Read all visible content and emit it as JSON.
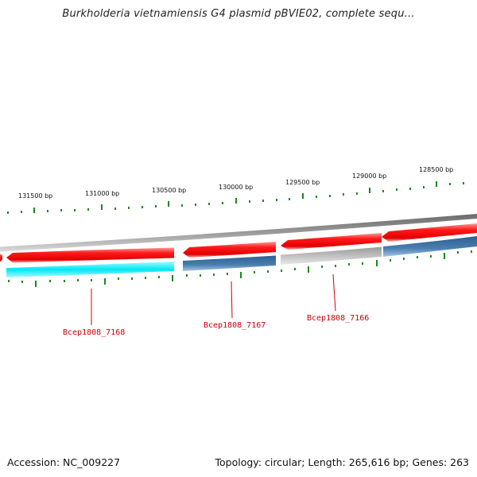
{
  "header": {
    "title": "Burkholderia vietnamiensis G4 plasmid pBVIE02, complete sequ..."
  },
  "ruler": {
    "labels": [
      "131500 bp",
      "131000 bp",
      "130500 bp",
      "130000 bp",
      "129500 bp",
      "129000 bp",
      "128500 bp"
    ]
  },
  "genes": {
    "labels": [
      "Bcep1808_7168",
      "Bcep1808_7167",
      "Bcep1808_7166"
    ]
  },
  "colors": {
    "forward": "#ff0000",
    "backbone": "#888888",
    "cyan_track": "#00e5f0",
    "blue_track": "#4a7fb0",
    "grey_track": "#c4c4c4",
    "ticks": "#1a8a1a",
    "gene_label": "#cc0000"
  },
  "footer": {
    "accession": "Accession: NC_009227",
    "summary": "Topology: circular; Length: 265,616 bp; Genes: 263"
  }
}
